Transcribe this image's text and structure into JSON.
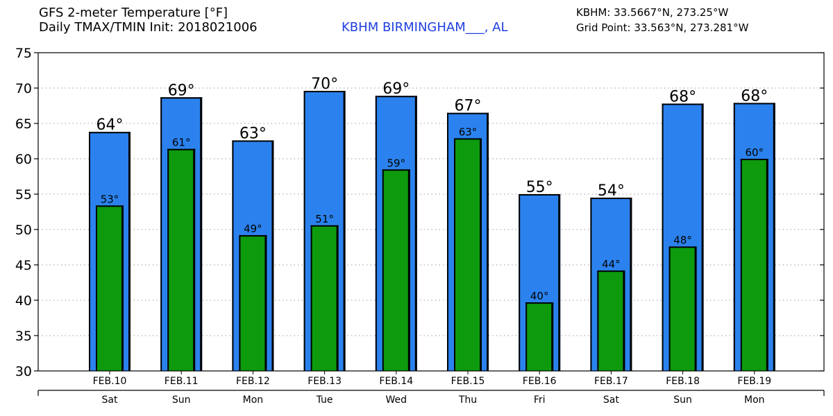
{
  "header": {
    "title_line1": "GFS 2-meter Temperature [°F]",
    "title_line2": "Daily TMAX/TMIN Init: 2018021006",
    "station": "KBHM BIRMINGHAM___, AL",
    "coords_line1": "KBHM: 33.5667°N, 273.25°W",
    "coords_line2": "Grid Point: 33.563°N, 273.281°W"
  },
  "colors": {
    "max_bar": "#2b82ee",
    "min_bar": "#0d9a0d",
    "station_text": "#1f3fe0"
  },
  "chart_data": {
    "type": "bar",
    "title": "GFS 2-meter Temperature [°F]",
    "ylim": [
      30,
      75
    ],
    "yticks": [
      30,
      35,
      40,
      45,
      50,
      55,
      60,
      65,
      70,
      75
    ],
    "grid": true,
    "categories": [
      "FEB.10",
      "FEB.11",
      "FEB.12",
      "FEB.13",
      "FEB.14",
      "FEB.15",
      "FEB.16",
      "FEB.17",
      "FEB.18",
      "FEB.19"
    ],
    "days": [
      "Sat",
      "Sun",
      "Mon",
      "Tue",
      "Wed",
      "Thu",
      "Fri",
      "Sat",
      "Sun",
      "Mon"
    ],
    "series": [
      {
        "name": "TMAX",
        "values": [
          63.8,
          68.7,
          62.6,
          69.6,
          68.9,
          66.5,
          55.0,
          54.5,
          67.8,
          67.9
        ],
        "labels": [
          "64°",
          "69°",
          "63°",
          "70°",
          "69°",
          "67°",
          "55°",
          "54°",
          "68°",
          "68°"
        ]
      },
      {
        "name": "TMIN",
        "values": [
          53.4,
          61.4,
          49.2,
          50.6,
          58.5,
          62.9,
          39.7,
          44.2,
          47.6,
          60.0
        ],
        "labels": [
          "53°",
          "61°",
          "49°",
          "51°",
          "59°",
          "63°",
          "40°",
          "44°",
          "48°",
          "60°"
        ]
      }
    ]
  }
}
